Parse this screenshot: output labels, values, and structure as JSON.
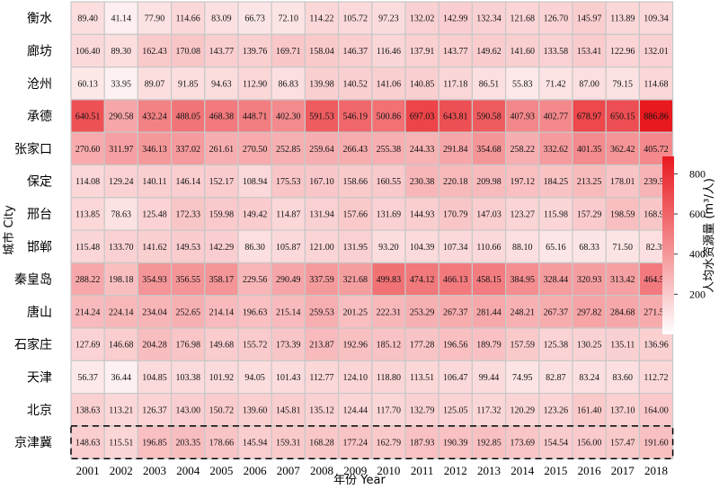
{
  "chart_data": {
    "type": "heatmap",
    "xlabel": "年份 Year",
    "ylabel": "城市 City",
    "colorbar": {
      "label": "人均水资源量 (m³/人)",
      "range": [
        0,
        886.86
      ],
      "ticks": [
        200,
        400,
        600,
        800
      ],
      "color_low": "#ffffff",
      "color_high": "#e8191f"
    },
    "highlighted_row": "京津冀",
    "columns": [
      "2001",
      "2002",
      "2003",
      "2004",
      "2005",
      "2006",
      "2007",
      "2008",
      "2009",
      "2010",
      "2011",
      "2012",
      "2013",
      "2014",
      "2015",
      "2016",
      "2017",
      "2018"
    ],
    "rows": [
      {
        "city": "衡水",
        "values": [
          89.4,
          41.14,
          77.9,
          114.66,
          83.09,
          66.73,
          72.1,
          114.22,
          105.72,
          97.23,
          132.02,
          142.99,
          132.34,
          121.68,
          126.7,
          145.97,
          113.89,
          109.34
        ]
      },
      {
        "city": "廊坊",
        "values": [
          106.4,
          89.3,
          162.43,
          170.08,
          143.77,
          139.76,
          169.71,
          158.04,
          146.37,
          116.46,
          137.91,
          143.77,
          149.62,
          141.6,
          133.58,
          153.41,
          122.96,
          132.01
        ]
      },
      {
        "city": "沧州",
        "values": [
          60.13,
          33.95,
          89.07,
          91.85,
          94.63,
          112.9,
          86.83,
          139.98,
          140.52,
          141.06,
          140.85,
          117.18,
          86.51,
          55.83,
          71.42,
          87.0,
          79.15,
          114.68
        ]
      },
      {
        "city": "承德",
        "values": [
          640.51,
          290.58,
          432.24,
          488.05,
          468.38,
          448.71,
          402.3,
          591.53,
          546.19,
          500.86,
          697.03,
          643.81,
          590.58,
          407.93,
          402.77,
          678.97,
          650.15,
          886.86
        ]
      },
      {
        "city": "张家口",
        "values": [
          270.6,
          311.97,
          346.13,
          337.02,
          261.61,
          270.5,
          252.85,
          259.64,
          266.43,
          255.38,
          244.33,
          291.84,
          354.68,
          258.22,
          332.62,
          401.35,
          362.42,
          405.72
        ]
      },
      {
        "city": "保定",
        "values": [
          114.08,
          129.24,
          140.11,
          146.14,
          152.17,
          108.94,
          175.53,
          167.1,
          158.66,
          160.55,
          230.38,
          220.18,
          209.98,
          197.12,
          184.25,
          213.25,
          178.01,
          239.54
        ]
      },
      {
        "city": "邢台",
        "values": [
          113.85,
          78.63,
          125.48,
          172.33,
          159.98,
          149.42,
          114.87,
          131.94,
          157.66,
          131.69,
          144.93,
          170.79,
          147.03,
          123.27,
          115.98,
          157.29,
          198.59,
          168.96
        ]
      },
      {
        "city": "邯郸",
        "values": [
          115.48,
          133.7,
          141.62,
          149.53,
          142.29,
          86.3,
          105.87,
          121.0,
          131.95,
          93.2,
          104.39,
          107.34,
          110.66,
          88.1,
          65.16,
          68.33,
          71.5,
          82.39
        ]
      },
      {
        "city": "秦皇岛",
        "values": [
          288.22,
          198.18,
          354.93,
          356.55,
          358.17,
          229.56,
          290.49,
          337.59,
          321.68,
          499.83,
          474.12,
          466.13,
          458.15,
          384.95,
          328.44,
          320.93,
          313.42,
          464.55
        ]
      },
      {
        "city": "唐山",
        "values": [
          214.24,
          224.14,
          234.04,
          252.65,
          214.14,
          196.63,
          215.14,
          259.53,
          201.25,
          222.31,
          253.29,
          267.37,
          281.44,
          248.21,
          267.37,
          297.82,
          284.68,
          271.54
        ]
      },
      {
        "city": "石家庄",
        "values": [
          127.69,
          146.68,
          204.28,
          176.98,
          149.68,
          155.72,
          173.39,
          213.87,
          192.96,
          185.12,
          177.28,
          196.56,
          189.79,
          157.59,
          125.38,
          130.25,
          135.11,
          136.96
        ]
      },
      {
        "city": "天津",
        "values": [
          56.37,
          36.44,
          104.85,
          103.38,
          101.92,
          94.05,
          101.43,
          112.77,
          124.1,
          118.8,
          113.51,
          106.47,
          99.44,
          74.95,
          82.87,
          83.24,
          83.6,
          112.72
        ]
      },
      {
        "city": "北京",
        "values": [
          138.63,
          113.21,
          126.37,
          143.0,
          150.72,
          139.6,
          145.81,
          135.12,
          124.44,
          117.7,
          132.79,
          125.05,
          117.32,
          120.29,
          123.26,
          161.4,
          137.1,
          164.0
        ]
      },
      {
        "city": "京津冀",
        "values": [
          148.63,
          115.51,
          196.85,
          203.35,
          178.66,
          145.94,
          159.31,
          168.28,
          177.24,
          162.79,
          187.93,
          190.39,
          192.85,
          173.69,
          154.54,
          156.0,
          157.47,
          191.6
        ]
      }
    ]
  }
}
